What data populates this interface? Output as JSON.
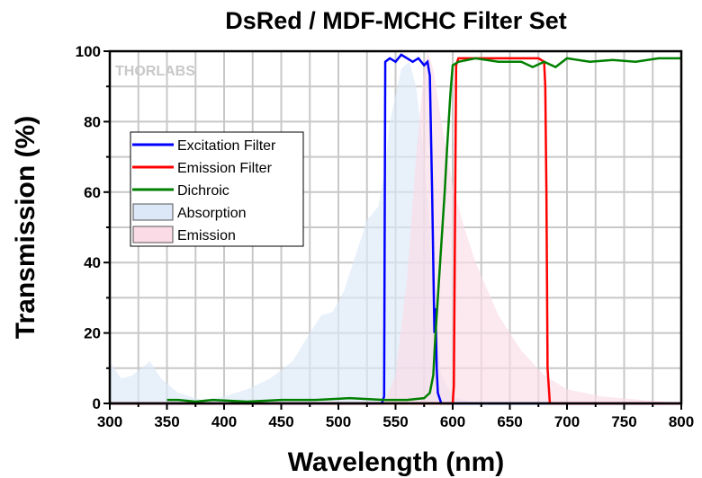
{
  "chart_data": {
    "type": "line",
    "title": "DsRed / MDF-MCHC Filter Set",
    "xlabel": "Wavelength (nm)",
    "ylabel": "Transmission (%)",
    "xlim": [
      300,
      800
    ],
    "ylim": [
      0,
      100
    ],
    "xticks": [
      300,
      350,
      400,
      450,
      500,
      550,
      600,
      650,
      700,
      750,
      800
    ],
    "yticks": [
      0,
      20,
      40,
      60,
      80,
      100
    ],
    "grid": true,
    "legend_position": "middle-left",
    "watermark": "THORLABS",
    "series": [
      {
        "name": "Excitation Filter",
        "kind": "line",
        "color": "#0000ff",
        "x": [
          300,
          538,
          540,
          541,
          545,
          550,
          555,
          560,
          565,
          570,
          575,
          578,
          580,
          582,
          584,
          585,
          586,
          587,
          590,
          800
        ],
        "y": [
          0,
          0,
          2,
          97,
          98,
          97,
          99,
          98,
          97,
          98,
          96,
          97,
          93,
          60,
          20,
          27,
          10,
          3,
          0,
          0
        ]
      },
      {
        "name": "Emission Filter",
        "kind": "line",
        "color": "#ff0000",
        "x": [
          300,
          600,
          601,
          602,
          603,
          605,
          620,
          640,
          660,
          675,
          680,
          681,
          682,
          683,
          685,
          800
        ],
        "y": [
          0,
          0,
          5,
          50,
          96,
          98,
          98,
          98,
          98,
          98,
          97,
          90,
          60,
          10,
          0,
          0
        ]
      },
      {
        "name": "Dichroic",
        "kind": "line",
        "color": "#008000",
        "x": [
          350,
          360,
          375,
          390,
          420,
          450,
          480,
          510,
          540,
          560,
          575,
          580,
          583,
          585,
          588,
          590,
          593,
          595,
          598,
          600,
          605,
          620,
          640,
          660,
          670,
          680,
          690,
          700,
          720,
          740,
          760,
          780,
          800
        ],
        "y": [
          1,
          1,
          0.5,
          1,
          0.5,
          1,
          1,
          1.5,
          1,
          1,
          1.5,
          3,
          8,
          20,
          35,
          45,
          60,
          72,
          88,
          96,
          97,
          98,
          97,
          97,
          95.5,
          97,
          95.5,
          98,
          97,
          97.5,
          97,
          98,
          98
        ]
      },
      {
        "name": "Absorption",
        "kind": "area",
        "color": "#dce8f7",
        "x": [
          300,
          310,
          320,
          335,
          345,
          360,
          380,
          400,
          420,
          440,
          460,
          475,
          485,
          495,
          505,
          515,
          525,
          535,
          540,
          545,
          555,
          562,
          568,
          575,
          580,
          585,
          590,
          600,
          620
        ],
        "y": [
          12,
          7,
          8,
          12,
          7,
          3,
          1,
          2,
          4,
          7,
          12,
          20,
          25,
          26,
          32,
          42,
          52,
          56,
          65,
          80,
          95,
          97,
          90,
          70,
          50,
          25,
          8,
          2,
          0
        ]
      },
      {
        "name": "Emission",
        "kind": "area",
        "color": "#fadbe6",
        "x": [
          540,
          550,
          560,
          568,
          575,
          578,
          583,
          590,
          600,
          610,
          620,
          640,
          660,
          680,
          700,
          730,
          800
        ],
        "y": [
          0,
          8,
          35,
          70,
          95,
          100,
          95,
          80,
          62,
          50,
          40,
          25,
          15,
          8,
          4,
          2,
          0
        ]
      }
    ]
  }
}
